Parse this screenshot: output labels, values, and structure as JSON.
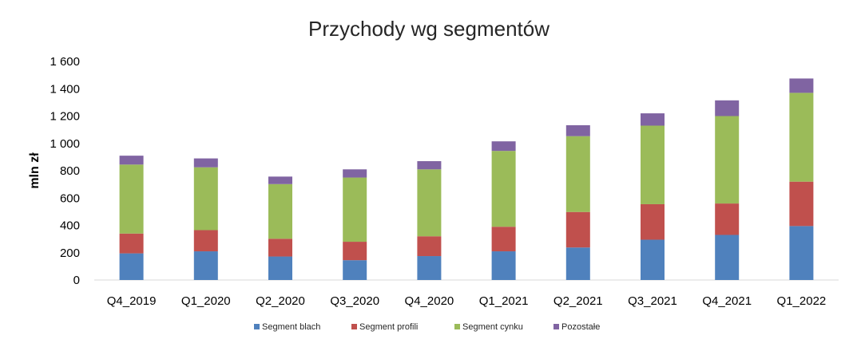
{
  "chart_data": {
    "type": "bar",
    "stacked": true,
    "title": "Przychody wg segmentów",
    "xlabel": "",
    "ylabel": "mln zł",
    "ylim": [
      0,
      1600
    ],
    "yticks": [
      0,
      200,
      400,
      600,
      800,
      1000,
      1200,
      1400,
      1600
    ],
    "ytick_labels": [
      "0",
      "200",
      "400",
      "600",
      "800",
      "1 000",
      "1 200",
      "1 400",
      "1 600"
    ],
    "grid": false,
    "legend_position": "bottom",
    "categories": [
      "Q4_2019",
      "Q1_2020",
      "Q2_2020",
      "Q3_2020",
      "Q4_2020",
      "Q1_2021",
      "Q2_2021",
      "Q3_2021",
      "Q4_2021",
      "Q1_2022"
    ],
    "series": [
      {
        "name": "Segment blach",
        "color": "#4f81bd",
        "values": [
          195,
          210,
          172,
          145,
          175,
          210,
          238,
          295,
          330,
          395
        ]
      },
      {
        "name": "Segment profili",
        "color": "#c0504d",
        "values": [
          145,
          155,
          130,
          135,
          145,
          180,
          260,
          260,
          230,
          325
        ]
      },
      {
        "name": "Segment cynku",
        "color": "#9bbb59",
        "values": [
          505,
          460,
          400,
          470,
          490,
          555,
          555,
          575,
          640,
          650
        ]
      },
      {
        "name": "Pozostałe",
        "color": "#8064a2",
        "values": [
          65,
          65,
          55,
          60,
          60,
          70,
          80,
          90,
          115,
          105
        ]
      }
    ]
  }
}
